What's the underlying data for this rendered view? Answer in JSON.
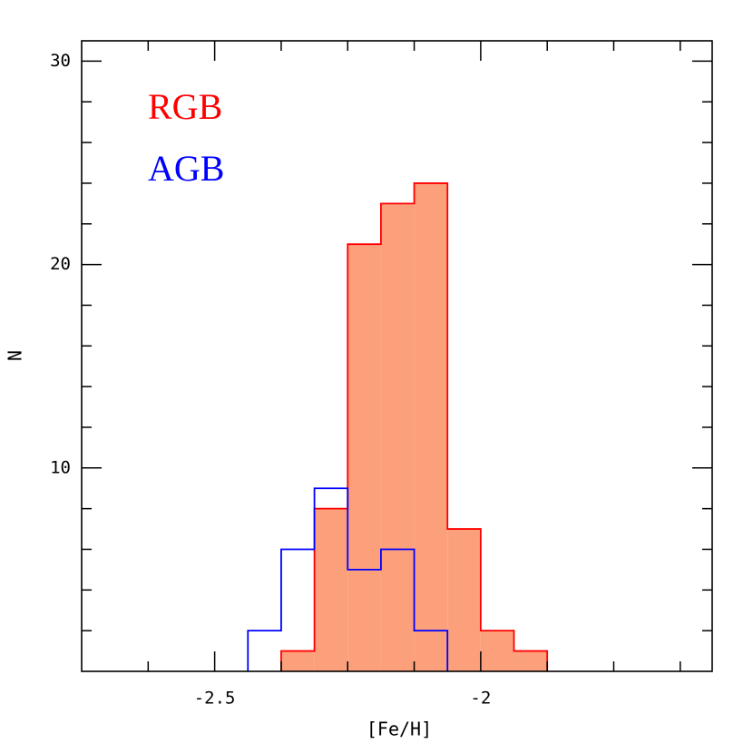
{
  "chart_data": {
    "type": "histogram",
    "x_label": "[Fe/H]",
    "y_label": "N",
    "xlim": [
      -2.75,
      -1.565
    ],
    "ylim": [
      0,
      31
    ],
    "xticks": [
      -2.5,
      -2
    ],
    "xticks_minor": [
      -2.625,
      -2.375,
      -2.25,
      -2.125,
      -1.875,
      -1.75,
      -1.625
    ],
    "yticks": [
      10,
      20,
      30
    ],
    "yticks_minor": [
      2,
      4,
      6,
      8,
      12,
      14,
      16,
      18,
      22,
      24,
      26,
      28
    ],
    "series": [
      {
        "name": "RGB",
        "color": "#ff0000",
        "fill": "#fca07c",
        "bins": [
          -2.375,
          -2.3125,
          -2.25,
          -2.1875,
          -2.125,
          -2.0625,
          -2.0,
          -1.9375,
          -1.875
        ],
        "values": [
          1,
          8,
          21,
          23,
          24,
          7,
          2,
          1
        ]
      },
      {
        "name": "AGB",
        "color": "#0000ff",
        "bins": [
          -2.4375,
          -2.375,
          -2.3125,
          -2.25,
          -2.1875,
          -2.125,
          -2.0625
        ],
        "values": [
          2,
          6,
          9,
          5,
          6,
          2
        ]
      }
    ]
  }
}
